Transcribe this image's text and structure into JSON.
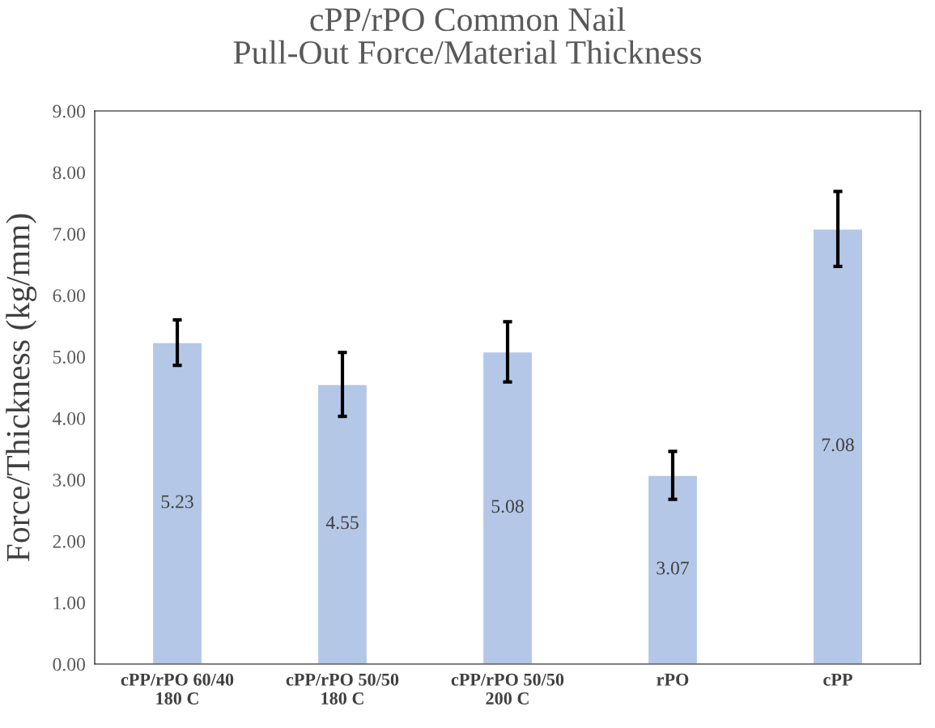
{
  "chart_data": {
    "type": "bar",
    "title": "cPP/rPO Common Nail\nPull-Out Force/Material Thickness",
    "ylabel": "Force/Thickness (kg/mm)",
    "categories": [
      "cPP/rPO 60/40\n180 C",
      "cPP/rPO 50/50\n180 C",
      "cPP/rPO 50/50\n200 C",
      "rPO",
      "cPP"
    ],
    "values": [
      5.23,
      4.55,
      5.08,
      3.07,
      7.08
    ],
    "errors": [
      0.37,
      0.52,
      0.49,
      0.39,
      0.61
    ],
    "color": "#b4c7e7",
    "data_labels": true,
    "ylim": [
      0,
      9
    ],
    "yticks": [
      {
        "value": 0,
        "label": "0.00"
      },
      {
        "value": 1,
        "label": "1.00"
      },
      {
        "value": 2,
        "label": "2.00"
      },
      {
        "value": 3,
        "label": "3.00"
      },
      {
        "value": 4,
        "label": "4.00"
      },
      {
        "value": 5,
        "label": "5.00"
      },
      {
        "value": 6,
        "label": "6.00"
      },
      {
        "value": 7,
        "label": "7.00"
      },
      {
        "value": 8,
        "label": "8.00"
      },
      {
        "value": 9,
        "label": "9.00"
      }
    ],
    "grid": false
  }
}
